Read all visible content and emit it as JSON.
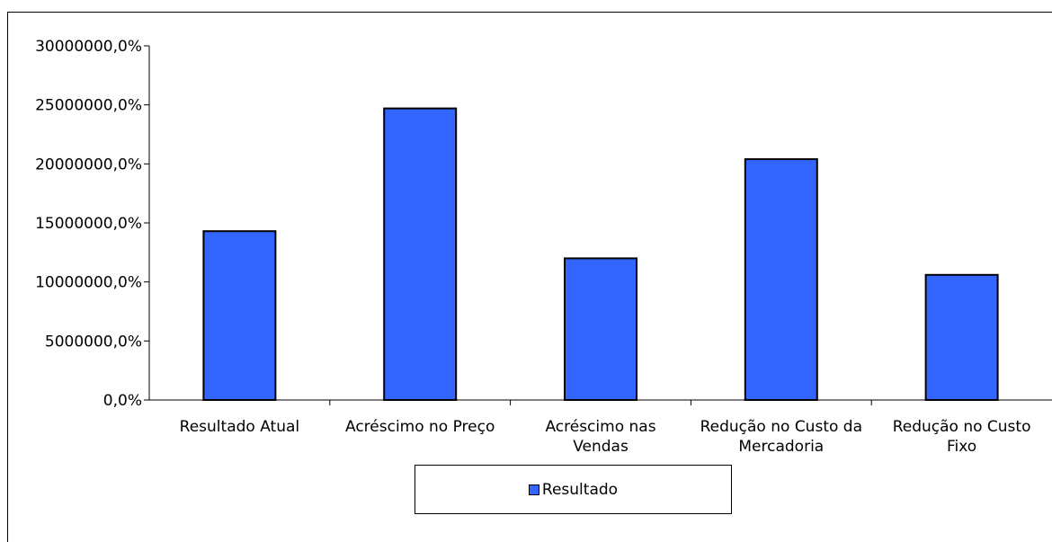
{
  "chart_data": {
    "type": "bar",
    "categories": [
      [
        "Resultado Atual"
      ],
      [
        "Acréscimo no Preço"
      ],
      [
        "Acréscimo nas",
        "Vendas"
      ],
      [
        "Redução no Custo da",
        "Mercadoria"
      ],
      [
        "Redução no Custo",
        "Fixo"
      ]
    ],
    "series": [
      {
        "name": "Resultado",
        "values": [
          14300000,
          24700000,
          12000000,
          20400000,
          10600000
        ]
      }
    ],
    "ylim": [
      0,
      30000000
    ],
    "yticks": [
      0,
      5000000,
      10000000,
      15000000,
      20000000,
      25000000,
      30000000
    ],
    "ytick_labels": [
      "0,0%",
      "5000000,0%",
      "10000000,0%",
      "15000000,0%",
      "20000000,0%",
      "25000000,0%",
      "30000000,0%"
    ],
    "legend_position": "bottom",
    "grid": false,
    "bar_color": "#3366ff"
  }
}
